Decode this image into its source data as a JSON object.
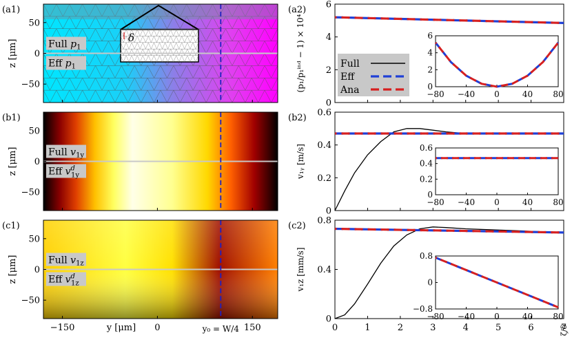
{
  "panels_left": [
    {
      "id": "a1",
      "tag": "(a1)",
      "full_var": "p",
      "full_sub": "1",
      "eff_var": "p",
      "eff_sub": "1",
      "eff_sup": "",
      "colormap": "cyan-magenta mesh",
      "inset_label": "δ"
    },
    {
      "id": "b1",
      "tag": "(b1)",
      "full_var": "v",
      "full_sub": "1y",
      "eff_var": "v",
      "eff_sub": "1y",
      "eff_sup": "d",
      "colormap": "black-red-yellow-white"
    },
    {
      "id": "c1",
      "tag": "(c1)",
      "full_var": "v",
      "full_sub": "1z",
      "eff_var": "v",
      "eff_sub": "1z",
      "eff_sup": "d",
      "colormap": "black-red-yellow-white"
    }
  ],
  "left_axes": {
    "ylabel": "z [μm]",
    "yticks": [
      "50",
      "0",
      "−50"
    ],
    "xticks": [
      "−150",
      "0",
      "150"
    ],
    "xlabel": "y [μm]",
    "marker_label": "y₀ = W/4",
    "marker_color": "#2020c0"
  },
  "legend": {
    "full": "Full",
    "eff": "Eff",
    "ana": "Ana"
  },
  "colors": {
    "full": "#000000",
    "eff": "#1f3fd6",
    "ana": "#d62020",
    "midline": "#c8c8c8"
  },
  "chart_data": [
    {
      "type": "line",
      "id": "a2",
      "tag": "(a2)",
      "ylabel": "(p₁/p₁ⁱⁿᵈ − 1) × 10⁴",
      "xlim": [
        0,
        7
      ],
      "ylim": [
        0,
        6
      ],
      "yticks": [
        "0",
        "2",
        "4",
        "6"
      ],
      "series": [
        {
          "name": "Full",
          "x": [
            0,
            1,
            2,
            3,
            4,
            5,
            6,
            7
          ],
          "y": [
            5.2,
            5.15,
            5.1,
            5.05,
            5.0,
            4.95,
            4.9,
            4.85
          ]
        },
        {
          "name": "Eff",
          "x": [
            0,
            7
          ],
          "y": [
            5.2,
            4.85
          ]
        },
        {
          "name": "Ana",
          "x": [
            0,
            7
          ],
          "y": [
            5.2,
            4.85
          ]
        }
      ],
      "inset": {
        "xlim": [
          -80,
          80
        ],
        "ylim": [
          0,
          6
        ],
        "xticks": [
          "−80",
          "−40",
          "0",
          "40",
          "80"
        ],
        "yticks": [
          "0",
          "2",
          "4",
          "6"
        ],
        "x": [
          -80,
          -60,
          -40,
          -20,
          0,
          20,
          40,
          60,
          80
        ],
        "y": [
          5.2,
          2.9,
          1.3,
          0.35,
          0.0,
          0.35,
          1.3,
          2.9,
          5.2
        ]
      }
    },
    {
      "type": "line",
      "id": "b2",
      "tag": "(b2)",
      "ylabel": "v₁ᵧ [m/s]",
      "xlim": [
        0,
        7
      ],
      "ylim": [
        0,
        0.6
      ],
      "yticks": [
        "0",
        "0.2",
        "0.4",
        "0.6"
      ],
      "series": [
        {
          "name": "Full",
          "x": [
            0,
            0.3,
            0.6,
            1.0,
            1.4,
            1.8,
            2.2,
            2.6,
            3.0,
            3.4,
            4.0,
            5.0,
            6.0,
            7.0
          ],
          "y": [
            0,
            0.12,
            0.23,
            0.34,
            0.42,
            0.48,
            0.5,
            0.5,
            0.49,
            0.48,
            0.47,
            0.47,
            0.47,
            0.47
          ]
        },
        {
          "name": "Eff",
          "x": [
            0,
            7
          ],
          "y": [
            0.47,
            0.47
          ]
        },
        {
          "name": "Ana",
          "x": [
            0,
            7
          ],
          "y": [
            0.47,
            0.47
          ]
        }
      ],
      "inset": {
        "xlim": [
          -80,
          80
        ],
        "ylim": [
          0,
          0.6
        ],
        "xticks": [
          "−80",
          "−40",
          "0",
          "40",
          "80"
        ],
        "yticks": [
          "0",
          "0.2",
          "0.4",
          "0.6"
        ],
        "x": [
          -80,
          80
        ],
        "y": [
          0.47,
          0.47
        ]
      }
    },
    {
      "type": "line",
      "id": "c2",
      "tag": "(c2)",
      "ylabel": "v₁z [mm/s]",
      "xlim": [
        0,
        7
      ],
      "ylim": [
        0,
        0.8
      ],
      "yticks": [
        "0",
        "0.4",
        "0.8"
      ],
      "xticks": [
        "0",
        "1",
        "2",
        "3",
        "4",
        "5",
        "6",
        "7"
      ],
      "series": [
        {
          "name": "Full",
          "x": [
            0,
            0.3,
            0.6,
            1.0,
            1.4,
            1.8,
            2.2,
            2.6,
            3.0,
            3.4,
            4.0,
            5.0,
            6.0,
            7.0
          ],
          "y": [
            0,
            0.03,
            0.12,
            0.28,
            0.45,
            0.59,
            0.68,
            0.73,
            0.745,
            0.74,
            0.73,
            0.72,
            0.71,
            0.7
          ]
        },
        {
          "name": "Eff",
          "x": [
            0,
            7
          ],
          "y": [
            0.73,
            0.7
          ]
        },
        {
          "name": "Ana",
          "x": [
            0,
            7
          ],
          "y": [
            0.73,
            0.7
          ]
        }
      ],
      "inset": {
        "xlim": [
          -80,
          80
        ],
        "ylim": [
          -0.8,
          0.8
        ],
        "xticks": [
          "−80",
          "−40",
          "0",
          "40",
          "80"
        ],
        "yticks": [
          "−0.8",
          "0",
          "0.8"
        ],
        "x": [
          -80,
          80
        ],
        "y": [
          0.75,
          -0.75
        ]
      }
    }
  ],
  "right_xlabel": "ζ/δ"
}
